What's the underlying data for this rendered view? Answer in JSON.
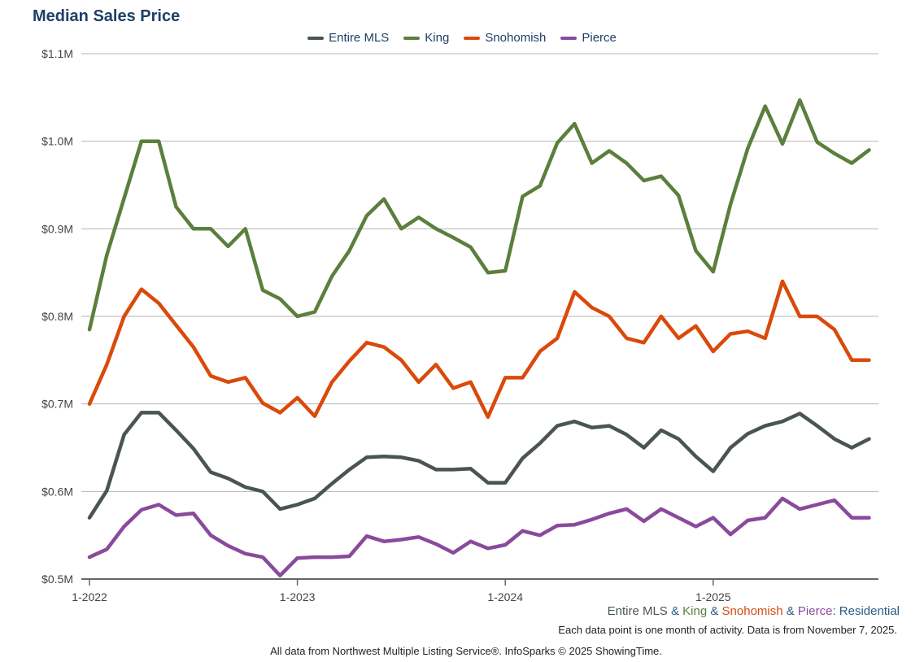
{
  "title": "Median Sales Price",
  "legend": [
    {
      "name": "Entire MLS",
      "color": "#4a5550"
    },
    {
      "name": "King",
      "color": "#5b7f3c"
    },
    {
      "name": "Snohomish",
      "color": "#d94a0b"
    },
    {
      "name": "Pierce",
      "color": "#8a4a9c"
    }
  ],
  "footer": {
    "series_label": [
      {
        "text": "Entire MLS",
        "color": "#4a5550"
      },
      {
        "text": " & ",
        "color": "#2a5a8a"
      },
      {
        "text": "King",
        "color": "#5b7f3c"
      },
      {
        "text": " & ",
        "color": "#2a5a8a"
      },
      {
        "text": "Snohomish",
        "color": "#d94a0b"
      },
      {
        "text": " & ",
        "color": "#2a5a8a"
      },
      {
        "text": "Pierce",
        "color": "#8a4a9c"
      },
      {
        "text": ": Residential",
        "color": "#2a5a8a"
      }
    ],
    "note": "Each data point is one month of activity. Data is from November 7, 2025.",
    "credit": "All data from Northwest Multiple Listing Service®. InfoSparks © 2025 ShowingTime."
  },
  "chart_data": {
    "type": "line",
    "title": "Median Sales Price",
    "xlabel": "",
    "ylabel": "",
    "ylim": [
      0.5,
      1.1
    ],
    "yticks": [
      {
        "value": 0.5,
        "label": "$0.5M"
      },
      {
        "value": 0.6,
        "label": "$0.6M"
      },
      {
        "value": 0.7,
        "label": "$0.7M"
      },
      {
        "value": 0.8,
        "label": "$0.8M"
      },
      {
        "value": 0.9,
        "label": "$0.9M"
      },
      {
        "value": 1.0,
        "label": "$1.0M"
      },
      {
        "value": 1.1,
        "label": "$1.1M"
      }
    ],
    "xticks": [
      {
        "index": 0,
        "label": "1-2022"
      },
      {
        "index": 12,
        "label": "1-2023"
      },
      {
        "index": 24,
        "label": "1-2024"
      },
      {
        "index": 36,
        "label": "1-2025"
      }
    ],
    "x_start": "1-2022",
    "x_count": 46,
    "grid": true,
    "series": [
      {
        "name": "Entire MLS",
        "color": "#4a5550",
        "values": [
          0.57,
          0.601,
          0.665,
          0.69,
          0.69,
          0.67,
          0.649,
          0.622,
          0.615,
          0.605,
          0.6,
          0.58,
          0.585,
          0.592,
          0.609,
          0.625,
          0.639,
          0.64,
          0.639,
          0.635,
          0.625,
          0.625,
          0.626,
          0.61,
          0.61,
          0.638,
          0.655,
          0.675,
          0.68,
          0.673,
          0.675,
          0.665,
          0.65,
          0.67,
          0.66,
          0.64,
          0.623,
          0.65,
          0.666,
          0.675,
          0.68,
          0.689,
          0.675,
          0.66,
          0.65,
          0.66
        ]
      },
      {
        "name": "King",
        "color": "#5b7f3c",
        "values": [
          0.785,
          0.87,
          0.935,
          1.0,
          1.0,
          0.925,
          0.9,
          0.9,
          0.88,
          0.9,
          0.83,
          0.82,
          0.8,
          0.805,
          0.846,
          0.875,
          0.915,
          0.934,
          0.9,
          0.913,
          0.9,
          0.89,
          0.879,
          0.85,
          0.852,
          0.937,
          0.949,
          0.998,
          1.02,
          0.975,
          0.989,
          0.975,
          0.955,
          0.96,
          0.938,
          0.875,
          0.851,
          0.928,
          0.992,
          1.04,
          0.997,
          1.047,
          0.999,
          0.986,
          0.975,
          0.99
        ]
      },
      {
        "name": "Snohomish",
        "color": "#d94a0b",
        "values": [
          0.7,
          0.745,
          0.8,
          0.831,
          0.815,
          0.79,
          0.765,
          0.732,
          0.725,
          0.73,
          0.701,
          0.69,
          0.707,
          0.686,
          0.725,
          0.749,
          0.77,
          0.765,
          0.75,
          0.725,
          0.745,
          0.718,
          0.725,
          0.685,
          0.73,
          0.73,
          0.76,
          0.775,
          0.828,
          0.81,
          0.8,
          0.775,
          0.77,
          0.8,
          0.775,
          0.789,
          0.76,
          0.78,
          0.783,
          0.775,
          0.84,
          0.8,
          0.8,
          0.785,
          0.75,
          0.75
        ]
      },
      {
        "name": "Pierce",
        "color": "#8a4a9c",
        "values": [
          0.525,
          0.534,
          0.56,
          0.579,
          0.585,
          0.573,
          0.575,
          0.55,
          0.538,
          0.529,
          0.525,
          0.504,
          0.524,
          0.525,
          0.525,
          0.526,
          0.549,
          0.543,
          0.545,
          0.548,
          0.54,
          0.53,
          0.543,
          0.535,
          0.539,
          0.555,
          0.55,
          0.561,
          0.562,
          0.568,
          0.575,
          0.58,
          0.566,
          0.58,
          0.57,
          0.56,
          0.57,
          0.551,
          0.567,
          0.57,
          0.592,
          0.58,
          0.585,
          0.59,
          0.57,
          0.57
        ]
      }
    ]
  }
}
